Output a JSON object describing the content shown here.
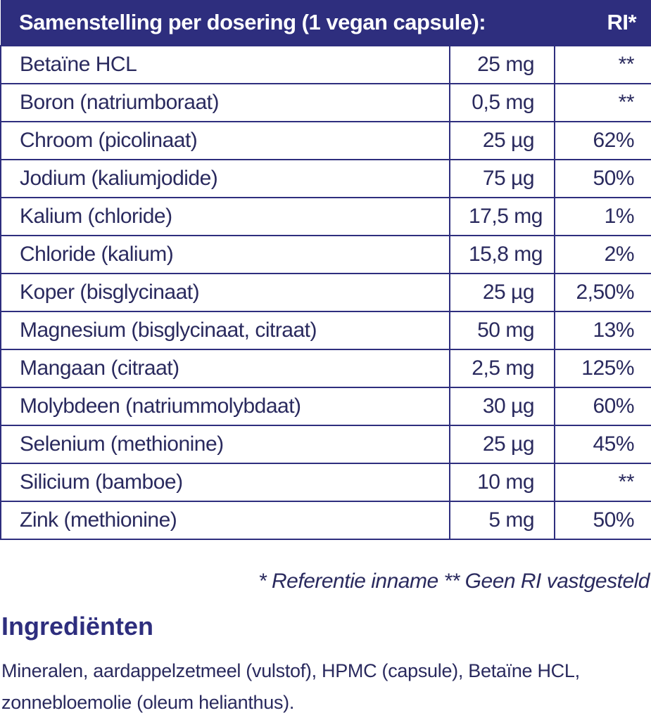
{
  "table": {
    "header": {
      "title": "Samenstelling per dosering (1 vegan capsule):",
      "ri": "RI*"
    },
    "rows": [
      {
        "name": "Betaïne HCL",
        "amount": "25 mg",
        "ri": "**"
      },
      {
        "name": "Boron (natriumboraat)",
        "amount": "0,5 mg",
        "ri": "**"
      },
      {
        "name": "Chroom (picolinaat)",
        "amount": "25 µg",
        "ri": "62%"
      },
      {
        "name": "Jodium (kaliumjodide)",
        "amount": "75 µg",
        "ri": "50%"
      },
      {
        "name": "Kalium (chloride)",
        "amount": "17,5 mg",
        "ri": "1%"
      },
      {
        "name": "Chloride (kalium)",
        "amount": "15,8 mg",
        "ri": "2%"
      },
      {
        "name": "Koper (bisglycinaat)",
        "amount": "25 µg",
        "ri": "2,50%"
      },
      {
        "name": "Magnesium (bisglycinaat, citraat)",
        "amount": "50 mg",
        "ri": "13%"
      },
      {
        "name": "Mangaan (citraat)",
        "amount": "2,5 mg",
        "ri": "125%"
      },
      {
        "name": "Molybdeen (natriummolybdaat)",
        "amount": "30 µg",
        "ri": "60%"
      },
      {
        "name": "Selenium (methionine)",
        "amount": "25 µg",
        "ri": "45%"
      },
      {
        "name": "Silicium (bamboe)",
        "amount": "10 mg",
        "ri": "**"
      },
      {
        "name": "Zink (methionine)",
        "amount": "5 mg",
        "ri": "50%"
      }
    ]
  },
  "footnote": "* Referentie inname  ** Geen RI vastgesteld",
  "ingredients": {
    "title": "Ingrediënten",
    "text": "Mineralen, aardappelzetmeel (vulstof), HPMC (capsule), Betaïne HCL, zonnebloemolie (oleum helianthus)."
  },
  "colors": {
    "header_bg": "#2e2e7e",
    "text": "#2a2a5e"
  }
}
